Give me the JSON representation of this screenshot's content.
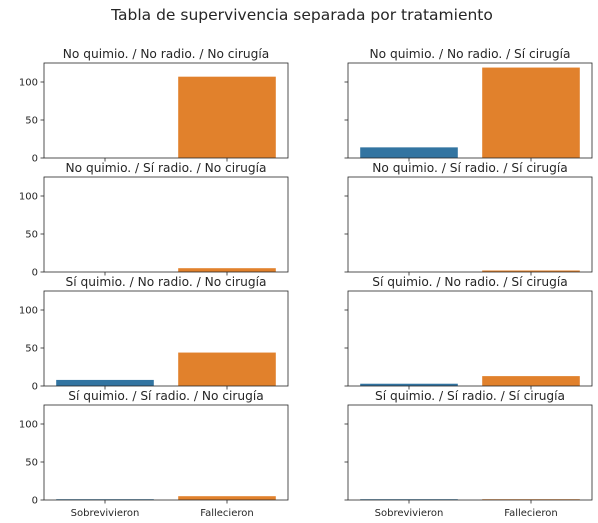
{
  "suptitle": "Tabla de supervivencia separada por tratamiento",
  "colors": {
    "Sobrevivieron": "#3274a1",
    "Fallecieron": "#e1812c"
  },
  "chart_data": [
    {
      "type": "bar",
      "title": "No quimio. / No radio. / No cirugía",
      "categories": [
        "Sobrevivieron",
        "Fallecieron"
      ],
      "values": [
        0,
        107
      ],
      "ylim": [
        0,
        125
      ],
      "yticks": [
        0,
        50,
        100
      ],
      "xlabel": "",
      "ylabel": ""
    },
    {
      "type": "bar",
      "title": "No quimio. / No radio. / Sí cirugía",
      "categories": [
        "Sobrevivieron",
        "Fallecieron"
      ],
      "values": [
        14,
        119
      ],
      "ylim": [
        0,
        125
      ],
      "yticks": [
        0,
        50,
        100
      ],
      "xlabel": "",
      "ylabel": ""
    },
    {
      "type": "bar",
      "title": "No quimio. / Sí radio. / No cirugía",
      "categories": [
        "Sobrevivieron",
        "Fallecieron"
      ],
      "values": [
        0,
        5
      ],
      "ylim": [
        0,
        125
      ],
      "yticks": [
        0,
        50,
        100
      ],
      "xlabel": "",
      "ylabel": ""
    },
    {
      "type": "bar",
      "title": "No quimio. / Sí radio. / Sí cirugía",
      "categories": [
        "Sobrevivieron",
        "Fallecieron"
      ],
      "values": [
        0,
        2
      ],
      "ylim": [
        0,
        125
      ],
      "yticks": [
        0,
        50,
        100
      ],
      "xlabel": "",
      "ylabel": ""
    },
    {
      "type": "bar",
      "title": "Sí quimio. / No radio. / No cirugía",
      "categories": [
        "Sobrevivieron",
        "Fallecieron"
      ],
      "values": [
        8,
        44
      ],
      "ylim": [
        0,
        125
      ],
      "yticks": [
        0,
        50,
        100
      ],
      "xlabel": "",
      "ylabel": ""
    },
    {
      "type": "bar",
      "title": "Sí quimio. / No radio. / Sí cirugía",
      "categories": [
        "Sobrevivieron",
        "Fallecieron"
      ],
      "values": [
        3,
        13
      ],
      "ylim": [
        0,
        125
      ],
      "yticks": [
        0,
        50,
        100
      ],
      "xlabel": "",
      "ylabel": ""
    },
    {
      "type": "bar",
      "title": "Sí quimio. / Sí radio. / No cirugía",
      "categories": [
        "Sobrevivieron",
        "Fallecieron"
      ],
      "values": [
        1,
        5
      ],
      "ylim": [
        0,
        125
      ],
      "yticks": [
        0,
        50,
        100
      ],
      "xlabel": "",
      "ylabel": ""
    },
    {
      "type": "bar",
      "title": "Sí quimio. / Sí radio. / Sí cirugía",
      "categories": [
        "Sobrevivieron",
        "Fallecieron"
      ],
      "values": [
        1,
        1
      ],
      "ylim": [
        0,
        125
      ],
      "yticks": [
        0,
        50,
        100
      ],
      "xlabel": "",
      "ylabel": ""
    }
  ]
}
